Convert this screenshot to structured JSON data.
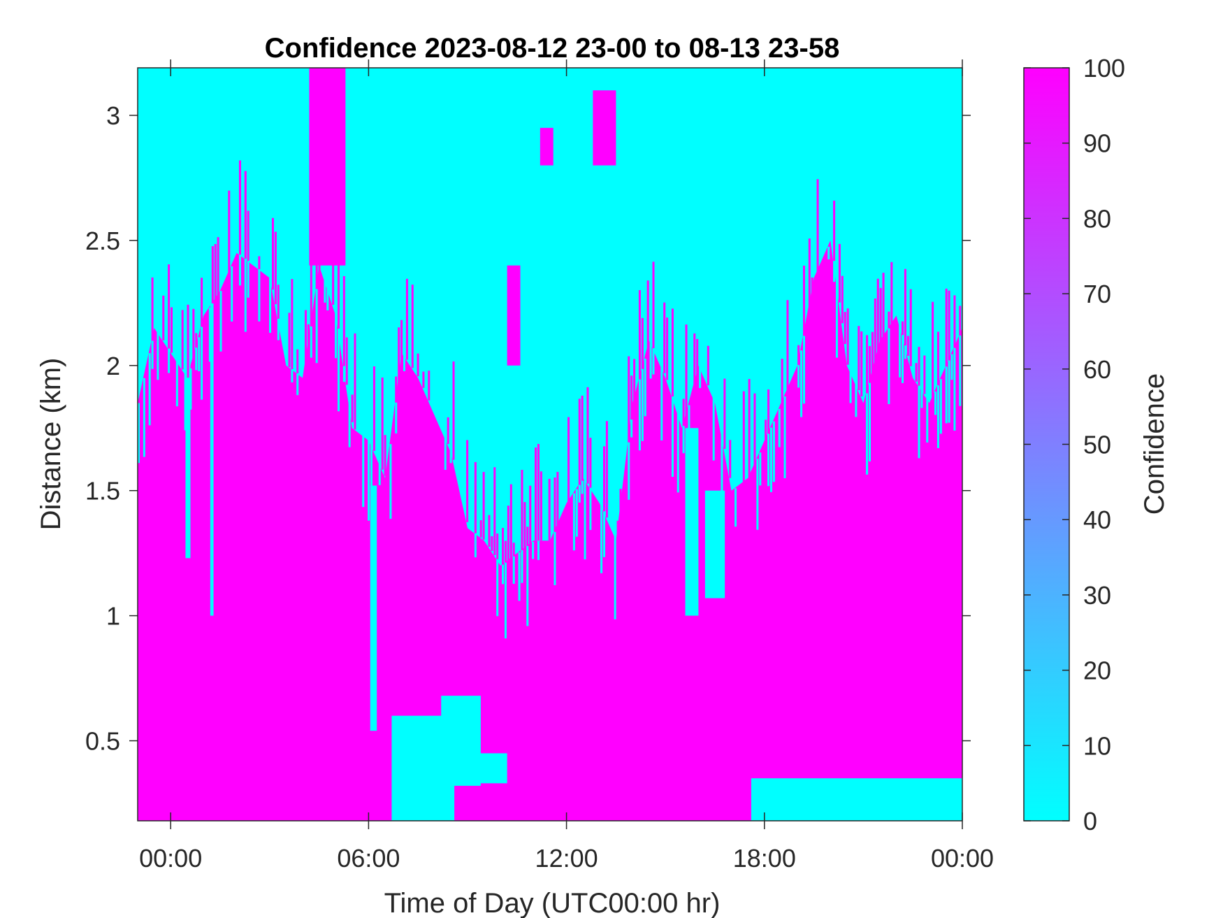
{
  "chart_data": {
    "type": "heatmap",
    "title": "Confidence 2023-08-12 23-00 to 08-13 23-58",
    "xlabel": "Time of Day (UTC00:00 hr)",
    "ylabel": "Distance (km)",
    "xlim": [
      -1,
      24
    ],
    "ylim": [
      0.18,
      3.19
    ],
    "x_ticks": [
      {
        "value": 0,
        "label": "00:00"
      },
      {
        "value": 6,
        "label": "06:00"
      },
      {
        "value": 12,
        "label": "12:00"
      },
      {
        "value": 18,
        "label": "18:00"
      },
      {
        "value": 24,
        "label": "00:00"
      }
    ],
    "y_ticks": [
      {
        "value": 0.5,
        "label": "0.5"
      },
      {
        "value": 1,
        "label": "1"
      },
      {
        "value": 1.5,
        "label": "1.5"
      },
      {
        "value": 2,
        "label": "2"
      },
      {
        "value": 2.5,
        "label": "2.5"
      },
      {
        "value": 3,
        "label": "3"
      }
    ],
    "colorbar": {
      "label": "Confidence",
      "range": [
        0,
        100
      ],
      "ticks": [
        "0",
        "10",
        "20",
        "30",
        "40",
        "50",
        "60",
        "70",
        "80",
        "90",
        "100"
      ],
      "colors": {
        "low": "#00ffff",
        "high": "#ff00ff"
      }
    },
    "colors": {
      "low_confidence": "#00ffff",
      "high_confidence": "#ff00ff"
    },
    "high_confidence_top_km": {
      "x": [
        -1,
        -0.5,
        0,
        0.5,
        1,
        1.5,
        2,
        2.5,
        3,
        3.5,
        4,
        4.5,
        5,
        5.5,
        6,
        6.5,
        7,
        7.5,
        8,
        8.5,
        9,
        9.5,
        10,
        10.5,
        11,
        11.5,
        12,
        12.5,
        13,
        13.5,
        14,
        14.5,
        15,
        15.5,
        16,
        16.5,
        17,
        17.5,
        18,
        18.5,
        19,
        19.5,
        20,
        20.5,
        21,
        21.5,
        22,
        22.5,
        23,
        23.5,
        24
      ],
      "y": [
        1.85,
        2.15,
        2.05,
        1.95,
        2.2,
        2.3,
        2.45,
        2.4,
        2.35,
        2.0,
        1.95,
        2.4,
        2.2,
        1.75,
        1.7,
        1.55,
        2.05,
        1.95,
        1.8,
        1.65,
        1.35,
        1.3,
        1.2,
        1.25,
        1.3,
        1.3,
        1.45,
        1.55,
        1.45,
        1.3,
        1.85,
        2.1,
        1.95,
        1.75,
        2.0,
        1.85,
        1.5,
        1.55,
        1.7,
        1.85,
        2.0,
        2.35,
        2.5,
        2.0,
        1.85,
        2.1,
        2.2,
        1.95,
        1.85,
        2.0,
        2.15
      ]
    },
    "cyan_gaps": [
      {
        "x": [
          6.05,
          6.25
        ],
        "y": [
          0.54,
          1.52
        ]
      },
      {
        "x": [
          6.7,
          8.6
        ],
        "y": [
          0.18,
          0.6
        ]
      },
      {
        "x": [
          8.2,
          9.4
        ],
        "y": [
          0.32,
          0.68
        ]
      },
      {
        "x": [
          9.2,
          10.2
        ],
        "y": [
          0.33,
          0.45
        ]
      },
      {
        "x": [
          17.6,
          24
        ],
        "y": [
          0.18,
          0.35
        ]
      },
      {
        "x": [
          0.45,
          0.6
        ],
        "y": [
          1.23,
          2.05
        ]
      },
      {
        "x": [
          1.2,
          1.3
        ],
        "y": [
          1.0,
          2.3
        ]
      },
      {
        "x": [
          15.6,
          16.0
        ],
        "y": [
          1.0,
          1.75
        ]
      },
      {
        "x": [
          16.2,
          16.8
        ],
        "y": [
          1.07,
          1.5
        ]
      }
    ],
    "magenta_patches": [
      {
        "x": [
          4.2,
          5.3
        ],
        "y": [
          2.4,
          3.19
        ]
      },
      {
        "x": [
          11.2,
          11.6
        ],
        "y": [
          2.8,
          2.95
        ]
      },
      {
        "x": [
          12.8,
          13.5
        ],
        "y": [
          2.8,
          3.1
        ]
      },
      {
        "x": [
          10.2,
          10.6
        ],
        "y": [
          2.0,
          2.4
        ]
      }
    ]
  }
}
